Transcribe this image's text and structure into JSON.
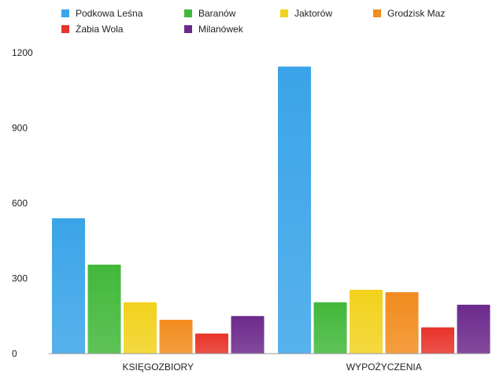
{
  "chart_data": {
    "type": "bar",
    "categories": [
      "KSIĘGOZBIORY",
      "WYPOŻYCZENIA"
    ],
    "series": [
      {
        "name": "Podkowa Leśna",
        "color": "#3aa4e8",
        "values": [
          540,
          1145
        ]
      },
      {
        "name": "Baranów",
        "color": "#42b83a",
        "values": [
          355,
          205
        ]
      },
      {
        "name": "Jaktorów",
        "color": "#f2d21d",
        "values": [
          205,
          255
        ]
      },
      {
        "name": "Grodzisk Maz",
        "color": "#f28c1e",
        "values": [
          135,
          245
        ]
      },
      {
        "name": "Żabia Wola",
        "color": "#e8332a",
        "values": [
          80,
          105
        ]
      },
      {
        "name": "Milanówek",
        "color": "#6c2a8c",
        "values": [
          150,
          195
        ]
      }
    ],
    "y_ticks": [
      "0",
      "300",
      "600",
      "900",
      "1200"
    ],
    "ylim": [
      0,
      1200
    ],
    "grid": false,
    "legend_position": "top"
  }
}
